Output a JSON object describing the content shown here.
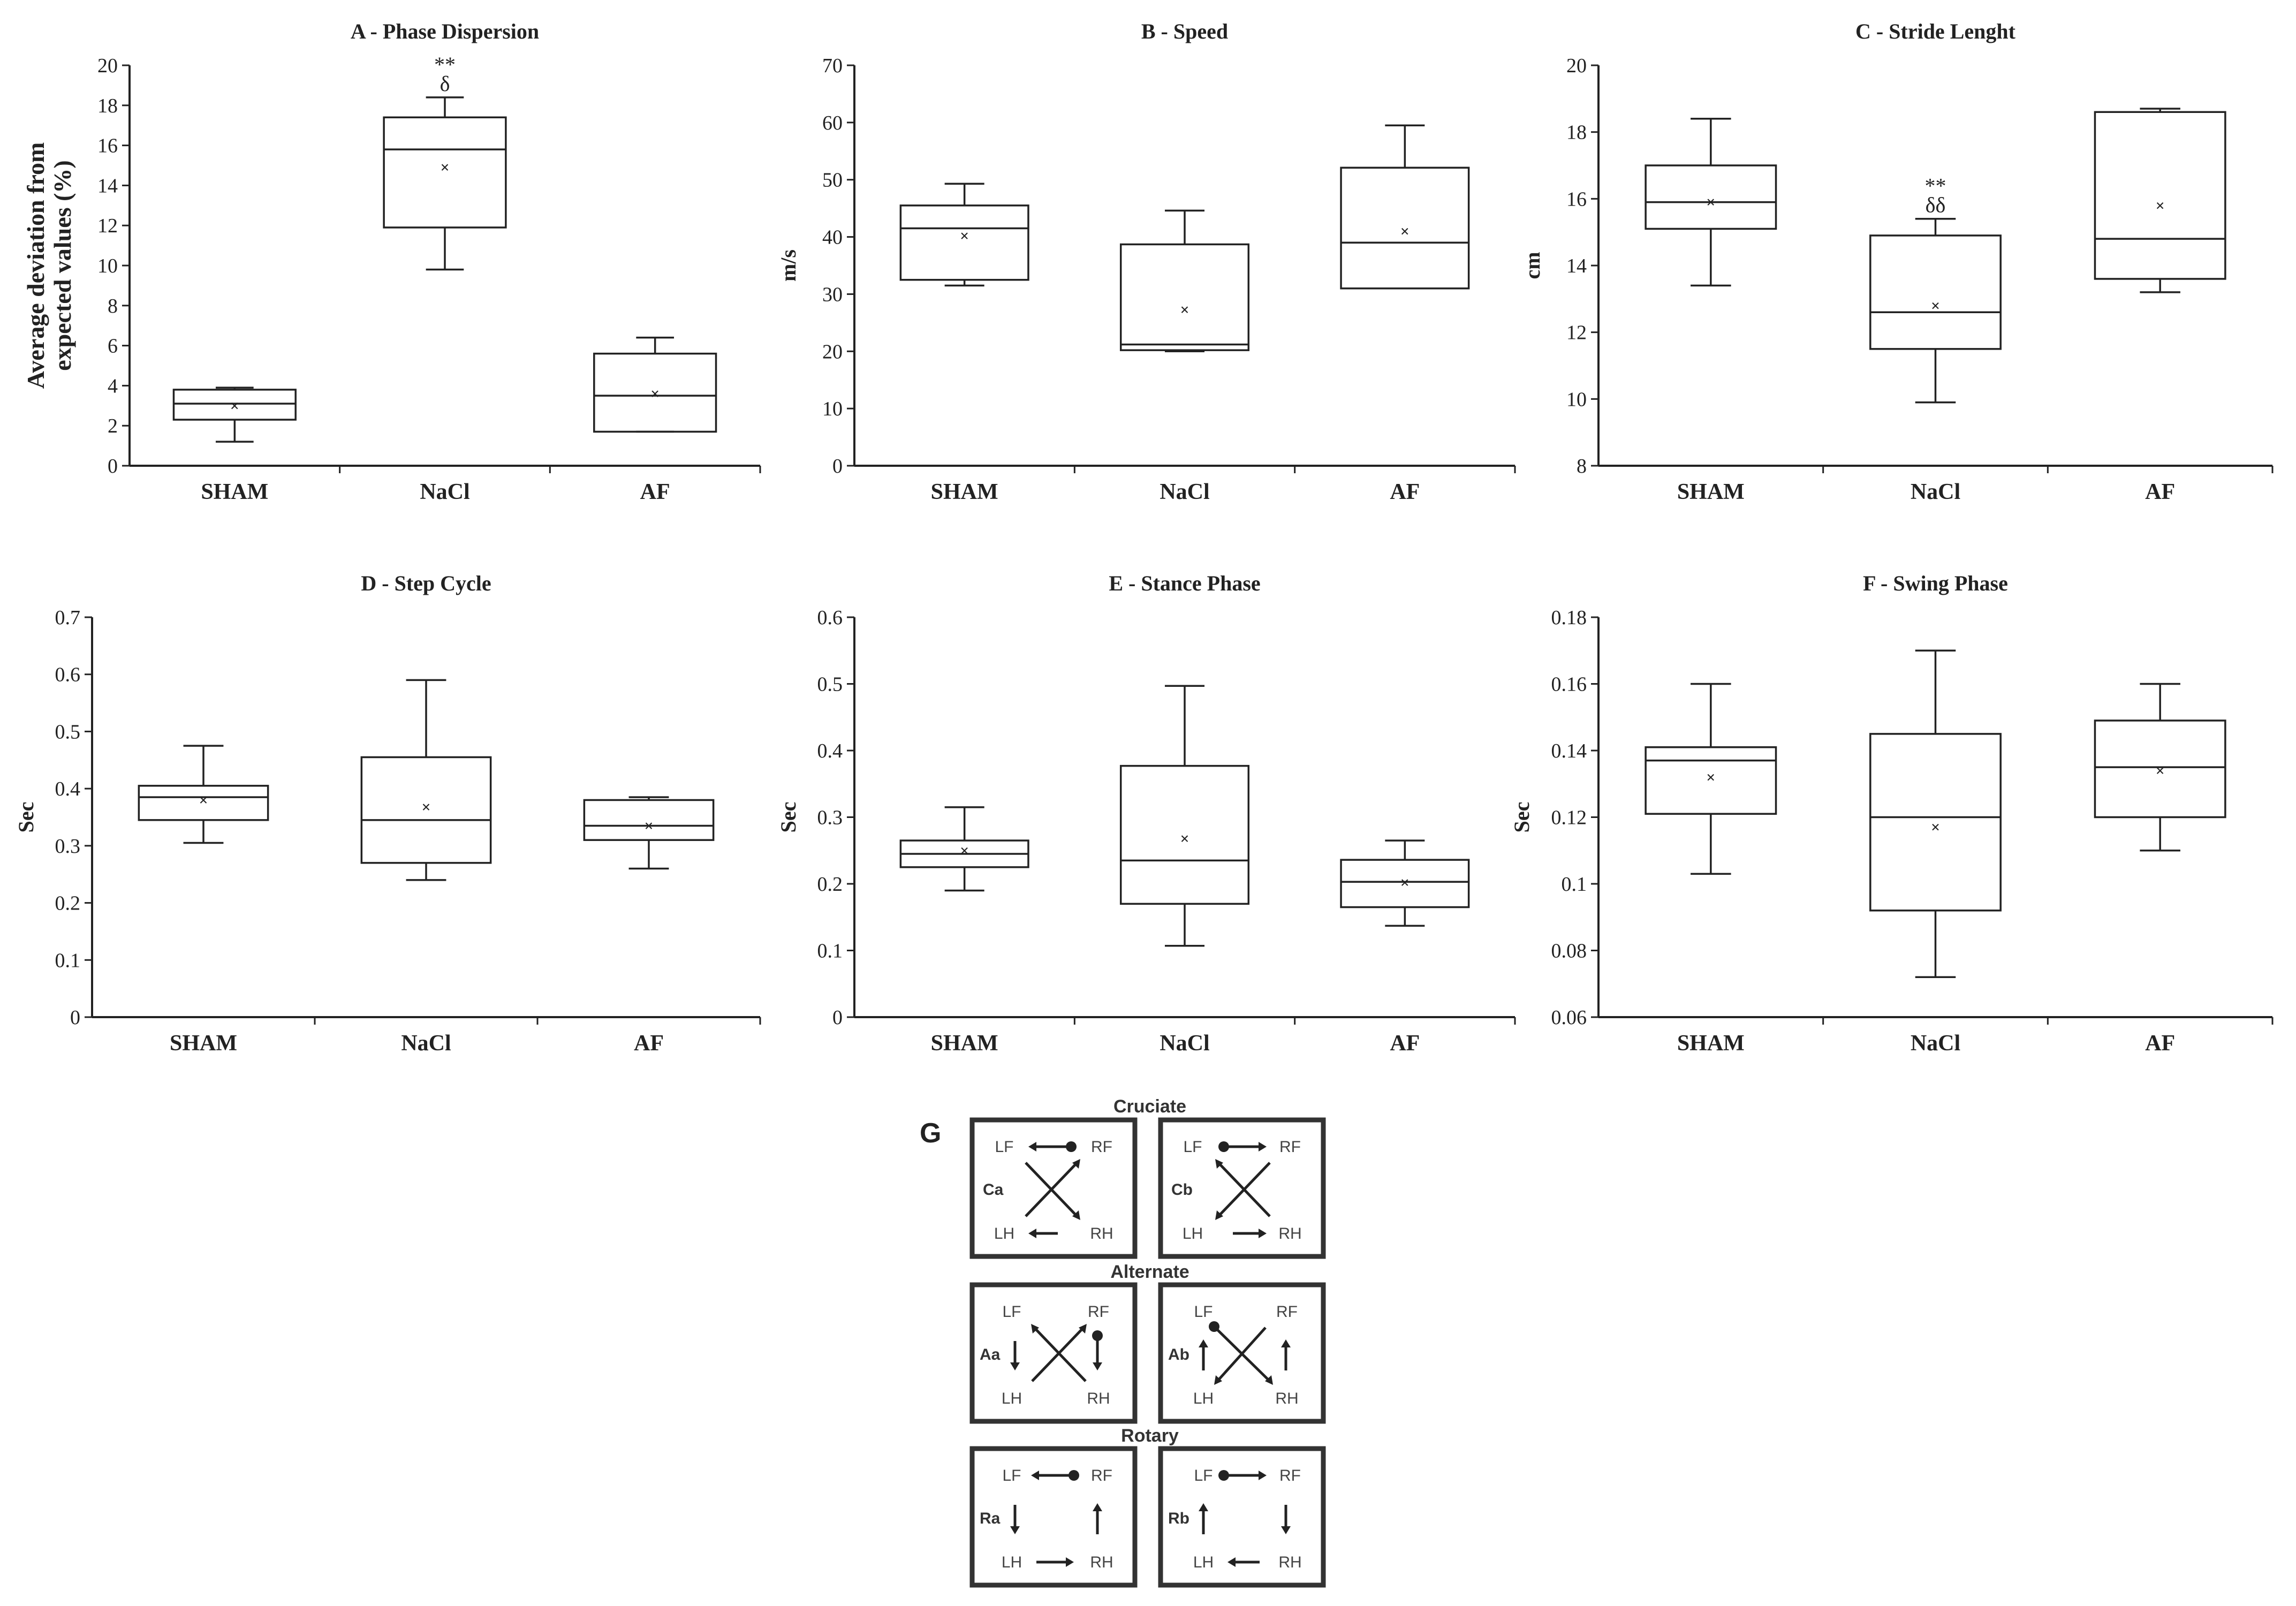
{
  "colors": {
    "ink": "#222222",
    "background": "#ffffff",
    "diagram_ink": "#333333"
  },
  "chart_data": [
    {
      "id": "A",
      "type": "box",
      "title": "A - Phase Dispersion",
      "ylabel": "Average deviation from expected values (%)",
      "ylabel_lines": [
        "Average deviation from",
        "expected values (%)"
      ],
      "categories": [
        "SHAM",
        "NaCl",
        "AF"
      ],
      "ylim": [
        0,
        20
      ],
      "yticks": [
        0,
        2,
        4,
        6,
        8,
        10,
        12,
        14,
        16,
        18,
        20
      ],
      "tick_decimals": 0,
      "boxes": [
        {
          "whisker_low": 1.2,
          "q1": 2.3,
          "median": 3.1,
          "q3": 3.8,
          "whisker_high": 3.9,
          "mean": 3.0
        },
        {
          "whisker_low": 9.8,
          "q1": 11.9,
          "median": 15.8,
          "q3": 17.4,
          "whisker_high": 18.4,
          "mean": 14.9
        },
        {
          "whisker_low": 1.7,
          "q1": 1.7,
          "median": 3.5,
          "q3": 5.6,
          "whisker_high": 6.4,
          "mean": 3.6
        }
      ],
      "annotations": [
        {
          "category": 1,
          "lines": [
            "**",
            "δ"
          ]
        }
      ]
    },
    {
      "id": "B",
      "type": "box",
      "title": "B - Speed",
      "ylabel": "m/s",
      "ylabel_lines": [
        "m/s"
      ],
      "categories": [
        "SHAM",
        "NaCl",
        "AF"
      ],
      "ylim": [
        0,
        70
      ],
      "yticks": [
        0,
        10,
        20,
        30,
        40,
        50,
        60,
        70
      ],
      "tick_decimals": 0,
      "boxes": [
        {
          "whisker_low": 31.5,
          "q1": 32.5,
          "median": 41.5,
          "q3": 45.5,
          "whisker_high": 49.3,
          "mean": 40.2
        },
        {
          "whisker_low": 20.0,
          "q1": 20.2,
          "median": 21.2,
          "q3": 38.7,
          "whisker_high": 44.6,
          "mean": 27.3
        },
        {
          "whisker_low": 31.0,
          "q1": 31.0,
          "median": 39.0,
          "q3": 52.1,
          "whisker_high": 59.5,
          "mean": 41.0
        }
      ],
      "annotations": []
    },
    {
      "id": "C",
      "type": "box",
      "title": "C - Stride Lenght",
      "ylabel": "cm",
      "ylabel_lines": [
        "cm"
      ],
      "categories": [
        "SHAM",
        "NaCl",
        "AF"
      ],
      "ylim": [
        8,
        20
      ],
      "yticks": [
        8,
        10,
        12,
        14,
        16,
        18,
        20
      ],
      "tick_decimals": 0,
      "boxes": [
        {
          "whisker_low": 13.4,
          "q1": 15.1,
          "median": 15.9,
          "q3": 17.0,
          "whisker_high": 18.4,
          "mean": 15.9
        },
        {
          "whisker_low": 9.9,
          "q1": 11.5,
          "median": 12.6,
          "q3": 14.9,
          "whisker_high": 15.4,
          "mean": 12.8
        },
        {
          "whisker_low": 13.2,
          "q1": 13.6,
          "median": 14.8,
          "q3": 18.6,
          "whisker_high": 18.7,
          "mean": 15.8
        }
      ],
      "annotations": [
        {
          "category": 1,
          "lines": [
            "**",
            "δδ"
          ]
        }
      ]
    },
    {
      "id": "D",
      "type": "box",
      "title": "D - Step Cycle",
      "ylabel": "Sec",
      "ylabel_lines": [
        "Sec"
      ],
      "categories": [
        "SHAM",
        "NaCl",
        "AF"
      ],
      "ylim": [
        0,
        0.7
      ],
      "yticks": [
        0,
        0.1,
        0.2,
        0.3,
        0.4,
        0.5,
        0.6,
        0.7
      ],
      "tick_decimals": 1,
      "boxes": [
        {
          "whisker_low": 0.305,
          "q1": 0.345,
          "median": 0.385,
          "q3": 0.405,
          "whisker_high": 0.475,
          "mean": 0.38
        },
        {
          "whisker_low": 0.24,
          "q1": 0.27,
          "median": 0.345,
          "q3": 0.455,
          "whisker_high": 0.59,
          "mean": 0.368
        },
        {
          "whisker_low": 0.26,
          "q1": 0.31,
          "median": 0.335,
          "q3": 0.38,
          "whisker_high": 0.385,
          "mean": 0.335
        }
      ],
      "annotations": []
    },
    {
      "id": "E",
      "type": "box",
      "title": "E - Stance Phase",
      "ylabel": "Sec",
      "ylabel_lines": [
        "Sec"
      ],
      "categories": [
        "SHAM",
        "NaCl",
        "AF"
      ],
      "ylim": [
        0,
        0.6
      ],
      "yticks": [
        0,
        0.1,
        0.2,
        0.3,
        0.4,
        0.5,
        0.6
      ],
      "tick_decimals": 1,
      "boxes": [
        {
          "whisker_low": 0.19,
          "q1": 0.225,
          "median": 0.245,
          "q3": 0.265,
          "whisker_high": 0.315,
          "mean": 0.25
        },
        {
          "whisker_low": 0.107,
          "q1": 0.17,
          "median": 0.235,
          "q3": 0.377,
          "whisker_high": 0.497,
          "mean": 0.268
        },
        {
          "whisker_low": 0.137,
          "q1": 0.165,
          "median": 0.203,
          "q3": 0.236,
          "whisker_high": 0.265,
          "mean": 0.202
        }
      ],
      "annotations": []
    },
    {
      "id": "F",
      "type": "box",
      "title": "F - Swing Phase",
      "ylabel": "Sec",
      "ylabel_lines": [
        "Sec"
      ],
      "categories": [
        "SHAM",
        "NaCl",
        "AF"
      ],
      "ylim": [
        0.06,
        0.18
      ],
      "yticks": [
        0.06,
        0.08,
        0.1,
        0.12,
        0.14,
        0.16,
        0.18
      ],
      "tick_decimals": 2,
      "boxes": [
        {
          "whisker_low": 0.103,
          "q1": 0.121,
          "median": 0.137,
          "q3": 0.141,
          "whisker_high": 0.16,
          "mean": 0.132
        },
        {
          "whisker_low": 0.072,
          "q1": 0.092,
          "median": 0.12,
          "q3": 0.145,
          "whisker_high": 0.17,
          "mean": 0.117
        },
        {
          "whisker_low": 0.11,
          "q1": 0.12,
          "median": 0.135,
          "q3": 0.149,
          "whisker_high": 0.16,
          "mean": 0.134
        }
      ],
      "annotations": []
    }
  ],
  "diagram": {
    "label": "G",
    "groups": [
      {
        "title": "Cruciate",
        "panels": [
          "Ca",
          "Cb"
        ]
      },
      {
        "title": "Alternate",
        "panels": [
          "Aa",
          "Ab"
        ]
      },
      {
        "title": "Rotary",
        "panels": [
          "Ra",
          "Rb"
        ]
      }
    ],
    "limbs": {
      "lf": "LF",
      "rf": "RF",
      "lh": "LH",
      "rh": "RH"
    }
  }
}
